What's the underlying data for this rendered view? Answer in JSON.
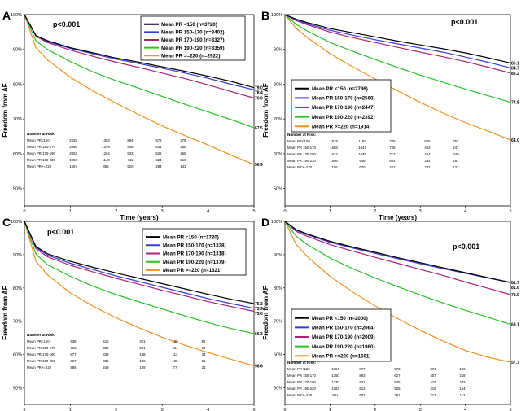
{
  "colors": [
    "#000000",
    "#3a3ad8",
    "#b0207a",
    "#27c427",
    "#f5901e"
  ],
  "chart_data": [
    {
      "type": "line",
      "panel_label": "A",
      "pvalue": "p<0.001",
      "xlabel": "Time (years)",
      "ylabel": "Freedom from AF",
      "xlim": [
        0,
        5
      ],
      "ylim": [
        45,
        100
      ],
      "xticks": [
        "0",
        "1",
        "2",
        "3",
        "4",
        "5"
      ],
      "yticks": [
        "50%",
        "60%",
        "70%",
        "80%",
        "90%",
        "100%"
      ],
      "legend_position": "top-right",
      "series": [
        {
          "name": "Mean PR <150 (n=3720)",
          "end_label": "79.0",
          "x": [
            0,
            0.25,
            0.5,
            1,
            1.5,
            2,
            2.5,
            3,
            3.5,
            4,
            4.5,
            5
          ],
          "y": [
            100,
            94,
            92.5,
            90.5,
            89,
            87.5,
            86.3,
            85,
            83.7,
            82.3,
            80.8,
            79
          ]
        },
        {
          "name": "Mean PR 150-170 (n=3402)",
          "end_label": "78.4",
          "x": [
            0,
            0.25,
            0.5,
            1,
            1.5,
            2,
            2.5,
            3,
            3.5,
            4,
            4.5,
            5
          ],
          "y": [
            100,
            94,
            92.3,
            90.3,
            88.7,
            87.2,
            85.9,
            84.6,
            83.2,
            81.7,
            80,
            78.4
          ]
        },
        {
          "name": "Mean PR 170-190 (n=3327)",
          "end_label": "76.0",
          "x": [
            0,
            0.25,
            0.5,
            1,
            1.5,
            2,
            2.5,
            3,
            3.5,
            4,
            4.5,
            5
          ],
          "y": [
            100,
            93.8,
            92,
            89.8,
            88,
            86.3,
            84.8,
            83.2,
            81.6,
            79.8,
            77.9,
            76
          ]
        },
        {
          "name": "Mean PR 190-220 (n=3359)",
          "end_label": "67.5",
          "x": [
            0,
            0.25,
            0.5,
            1,
            1.5,
            2,
            2.5,
            3,
            3.5,
            4,
            4.5,
            5
          ],
          "y": [
            100,
            92.5,
            90,
            86.5,
            83.5,
            81,
            78.8,
            76.5,
            74.2,
            72,
            69.8,
            67.5
          ]
        },
        {
          "name": "Mean PR >=220 (n=2922)",
          "end_label": "56.9",
          "x": [
            0,
            0.25,
            0.5,
            1,
            1.5,
            2,
            2.5,
            3,
            3.5,
            4,
            4.5,
            5
          ],
          "y": [
            100,
            90.5,
            87,
            82,
            78,
            74.5,
            71.2,
            68,
            65.2,
            62.5,
            59.6,
            56.9
          ]
        }
      ],
      "risk_table": {
        "header": "Number at Risk:",
        "rows": [
          {
            "label": "Mean PR<150",
            "values": [
              "2232",
              "1393",
              "894",
              "578",
              "279"
            ]
          },
          {
            "label": "Mean PR 150-170",
            "values": [
              "2065",
              "1249",
              "848",
              "531",
              "266"
            ]
          },
          {
            "label": "Mean PR 170-190",
            "values": [
              "2002",
              "1264",
              "833",
              "522",
              "265"
            ]
          },
          {
            "label": "Mean PR 190-220",
            "values": [
              "1950",
              "1148",
              "711",
              "424",
              "215"
            ]
          },
          {
            "label": "Mean PR>=220",
            "values": [
              "1567",
              "858",
              "520",
              "284",
              "143"
            ]
          }
        ]
      }
    },
    {
      "type": "line",
      "panel_label": "B",
      "pvalue": "p<0.001",
      "xlabel": "Time (years)",
      "ylabel": "Freedom from AF",
      "xlim": [
        0,
        5
      ],
      "ylim": [
        45,
        100
      ],
      "xticks": [
        "0",
        "1",
        "2",
        "3",
        "4",
        "5"
      ],
      "yticks": [
        "50%",
        "60%",
        "70%",
        "80%",
        "90%",
        "100%"
      ],
      "legend_position": "center-left",
      "series": [
        {
          "name": "Mean PR <150 (n=2786)",
          "end_label": "86.1",
          "x": [
            0,
            0.25,
            0.5,
            1,
            1.5,
            2,
            2.5,
            3,
            3.5,
            4,
            4.5,
            5
          ],
          "y": [
            100,
            98.7,
            97.7,
            96,
            94.8,
            93.6,
            92.4,
            91.3,
            90.2,
            89,
            87.6,
            86.1
          ]
        },
        {
          "name": "Mean PR 150-170 (n=2568)",
          "end_label": "84.7",
          "x": [
            0,
            0.25,
            0.5,
            1,
            1.5,
            2,
            2.5,
            3,
            3.5,
            4,
            4.5,
            5
          ],
          "y": [
            100,
            98.5,
            97.4,
            95.5,
            94.1,
            92.8,
            91.6,
            90.4,
            89.2,
            87.8,
            86.3,
            84.7
          ]
        },
        {
          "name": "Mean PR 170-190 (n=2447)",
          "end_label": "83.2",
          "x": [
            0,
            0.25,
            0.5,
            1,
            1.5,
            2,
            2.5,
            3,
            3.5,
            4,
            4.5,
            5
          ],
          "y": [
            100,
            98.3,
            97.1,
            95,
            93.4,
            92,
            90.6,
            89.2,
            87.9,
            86.5,
            84.9,
            83.2
          ]
        },
        {
          "name": "Mean PR 190-220 (n=2392)",
          "end_label": "74.8",
          "x": [
            0,
            0.25,
            0.5,
            1,
            1.5,
            2,
            2.5,
            3,
            3.5,
            4,
            4.5,
            5
          ],
          "y": [
            100,
            97.2,
            95.3,
            92,
            89.5,
            87.1,
            84.8,
            82.6,
            80.6,
            78.6,
            76.7,
            74.8
          ]
        },
        {
          "name": "Mean PR >=220 (n=1914)",
          "end_label": "64.0",
          "x": [
            0,
            0.25,
            0.5,
            1,
            1.5,
            2,
            2.5,
            3,
            3.5,
            4,
            4.5,
            5
          ],
          "y": [
            100,
            96,
            93.4,
            88.8,
            85,
            81.5,
            78.1,
            74.8,
            71.7,
            69,
            66.5,
            64
          ]
        }
      ],
      "risk_table": {
        "header": "Number at Risk:",
        "rows": [
          {
            "label": "Mean PR<150",
            "values": [
              "1819",
              "1183",
              "776",
              "505",
              "252"
            ]
          },
          {
            "label": "Mean PR 150-170",
            "values": [
              "1658",
              "1042",
              "728",
              "462",
              "247"
            ]
          },
          {
            "label": "Mean PR 170-190",
            "values": [
              "1634",
              "1045",
              "717",
              "464",
              "240"
            ]
          },
          {
            "label": "Mean PR 190-220",
            "values": [
              "1506",
              "948",
              "604",
              "364",
              "191"
            ]
          },
          {
            "label": "Mean PR>=220",
            "values": [
              "1156",
              "670",
              "422",
              "242",
              "122"
            ]
          }
        ]
      }
    },
    {
      "type": "line",
      "panel_label": "C",
      "pvalue": "p<0.001",
      "xlabel": "Time (years)",
      "ylabel": "Freedom from AF",
      "xlim": [
        0,
        5
      ],
      "ylim": [
        45,
        100
      ],
      "xticks": [
        "0",
        "1",
        "2",
        "3",
        "4",
        "5"
      ],
      "yticks": [
        "50%",
        "60%",
        "70%",
        "80%",
        "90%",
        "100%"
      ],
      "legend_position": "top-right",
      "series": [
        {
          "name": "Mean PR <150 (n=1720)",
          "end_label": "75.3",
          "x": [
            0,
            0.25,
            0.5,
            1,
            1.5,
            2,
            2.5,
            3,
            3.5,
            4,
            4.5,
            5
          ],
          "y": [
            100,
            92.5,
            90.3,
            88,
            86.2,
            84.5,
            82.9,
            81.3,
            79.7,
            78.1,
            76.6,
            75.3
          ]
        },
        {
          "name": "Mean PR 150-170 (n=1338)",
          "end_label": "73.9",
          "x": [
            0,
            0.25,
            0.5,
            1,
            1.5,
            2,
            2.5,
            3,
            3.5,
            4,
            4.5,
            5
          ],
          "y": [
            100,
            92.2,
            89.9,
            87.4,
            85.5,
            83.6,
            81.9,
            80.2,
            78.5,
            76.8,
            75.3,
            73.9
          ]
        },
        {
          "name": "Mean PR 170-190 (n=1318)",
          "end_label": "73.0",
          "x": [
            0,
            0.25,
            0.5,
            1,
            1.5,
            2,
            2.5,
            3,
            3.5,
            4,
            4.5,
            5
          ],
          "y": [
            100,
            91.8,
            89.4,
            86.8,
            84.8,
            82.9,
            81.1,
            79.3,
            77.6,
            75.9,
            74.4,
            73
          ]
        },
        {
          "name": "Mean PR 190-220 (n=1379)",
          "end_label": "66.3",
          "x": [
            0,
            0.25,
            0.5,
            1,
            1.5,
            2,
            2.5,
            3,
            3.5,
            4,
            4.5,
            5
          ],
          "y": [
            100,
            90.2,
            87,
            83.5,
            80.5,
            78,
            75.8,
            73.7,
            71.6,
            69.6,
            67.8,
            66.3
          ]
        },
        {
          "name": "Mean PR >=220 (n=1321)",
          "end_label": "56.6",
          "x": [
            0,
            0.25,
            0.5,
            1,
            1.5,
            2,
            2.5,
            3,
            3.5,
            4,
            4.5,
            5
          ],
          "y": [
            100,
            88,
            84,
            78.5,
            74.5,
            71,
            68,
            65.2,
            62.8,
            60.6,
            58.6,
            56.6
          ]
        }
      ],
      "risk_table": {
        "header": "Number at Risk:",
        "rows": [
          {
            "label": "Mean PR<150",
            "values": [
              "938",
              "516",
              "321",
              "189",
              "82"
            ]
          },
          {
            "label": "Mean PR 150-170",
            "values": [
              "718",
              "389",
              "221",
              "124",
              "60"
            ]
          },
          {
            "label": "Mean PR 170-190",
            "values": [
              "677",
              "333",
              "188",
              "113",
              "33"
            ]
          },
          {
            "label": "Mean PR 190-220",
            "values": [
              "667",
              "336",
              "186",
              "105",
              "51"
            ]
          },
          {
            "label": "Mean PR>=220",
            "values": [
              "586",
              "249",
              "129",
              "77",
              "31"
            ]
          }
        ]
      }
    },
    {
      "type": "line",
      "panel_label": "D",
      "pvalue": "p<0.001",
      "xlabel": "Time (years)",
      "ylabel": "Freedom from AF",
      "xlim": [
        0,
        5
      ],
      "ylim": [
        45,
        100
      ],
      "xticks": [
        "0",
        "1",
        "2",
        "3",
        "4",
        "5"
      ],
      "yticks": [
        "50%",
        "60%",
        "70%",
        "80%",
        "90%",
        "100%"
      ],
      "legend_position": "center-left",
      "series": [
        {
          "name": "Mean PR <150 (n=2000)",
          "end_label": "81.7",
          "x": [
            0,
            0.25,
            0.5,
            1,
            1.5,
            2,
            2.5,
            3,
            3.5,
            4,
            4.5,
            5
          ],
          "y": [
            100,
            97.5,
            96.2,
            94,
            92.3,
            90.7,
            89.1,
            87.6,
            86.1,
            84.6,
            83.1,
            81.7
          ]
        },
        {
          "name": "Mean PR 150-170 (n=2064)",
          "end_label": "81.6",
          "x": [
            0,
            0.25,
            0.5,
            1,
            1.5,
            2,
            2.5,
            3,
            3.5,
            4,
            4.5,
            5
          ],
          "y": [
            100,
            97.3,
            96,
            93.7,
            92,
            90.4,
            88.8,
            87.3,
            85.8,
            84.4,
            83,
            81.6
          ]
        },
        {
          "name": "Mean PR 170-190 (n=2009)",
          "end_label": "78.0",
          "x": [
            0,
            0.25,
            0.5,
            1,
            1.5,
            2,
            2.5,
            3,
            3.5,
            4,
            4.5,
            5
          ],
          "y": [
            100,
            97,
            95.5,
            93,
            91.1,
            89.2,
            87.4,
            85.6,
            83.8,
            81.8,
            79.9,
            78
          ]
        },
        {
          "name": "Mean PR 190-220 (n=1980)",
          "end_label": "69.1",
          "x": [
            0,
            0.25,
            0.5,
            1,
            1.5,
            2,
            2.5,
            3,
            3.5,
            4,
            4.5,
            5
          ],
          "y": [
            100,
            95.5,
            93,
            89,
            85.8,
            83,
            80.4,
            77.9,
            75.5,
            73.3,
            71.2,
            69.1
          ]
        },
        {
          "name": "Mean PR >=220 (n=1601)",
          "end_label": "57.7",
          "x": [
            0,
            0.25,
            0.5,
            1,
            1.5,
            2,
            2.5,
            3,
            3.5,
            4,
            4.5,
            5
          ],
          "y": [
            100,
            93,
            89.4,
            83.5,
            78.8,
            74.6,
            70.8,
            67.3,
            64.1,
            61.2,
            59.2,
            57.7
          ]
        }
      ],
      "risk_table": {
        "header": "Number at Risk:",
        "rows": [
          {
            "label": "Mean PR<150",
            "values": [
              "1294",
              "877",
              "573",
              "371",
              "196"
            ]
          },
          {
            "label": "Mean PR 150-170",
            "values": [
              "1350",
              "893",
              "627",
              "407",
              "218"
            ]
          },
          {
            "label": "Mean PR 170-190",
            "values": [
              "1370",
              "931",
              "645",
              "419",
              "232"
            ]
          },
          {
            "label": "Mean PR 190-220",
            "values": [
              "1283",
              "812",
              "525",
              "319",
              "164"
            ]
          },
          {
            "label": "Mean PR>=220",
            "values": [
              "991",
              "607",
              "391",
              "217",
              "112"
            ]
          }
        ]
      }
    }
  ]
}
